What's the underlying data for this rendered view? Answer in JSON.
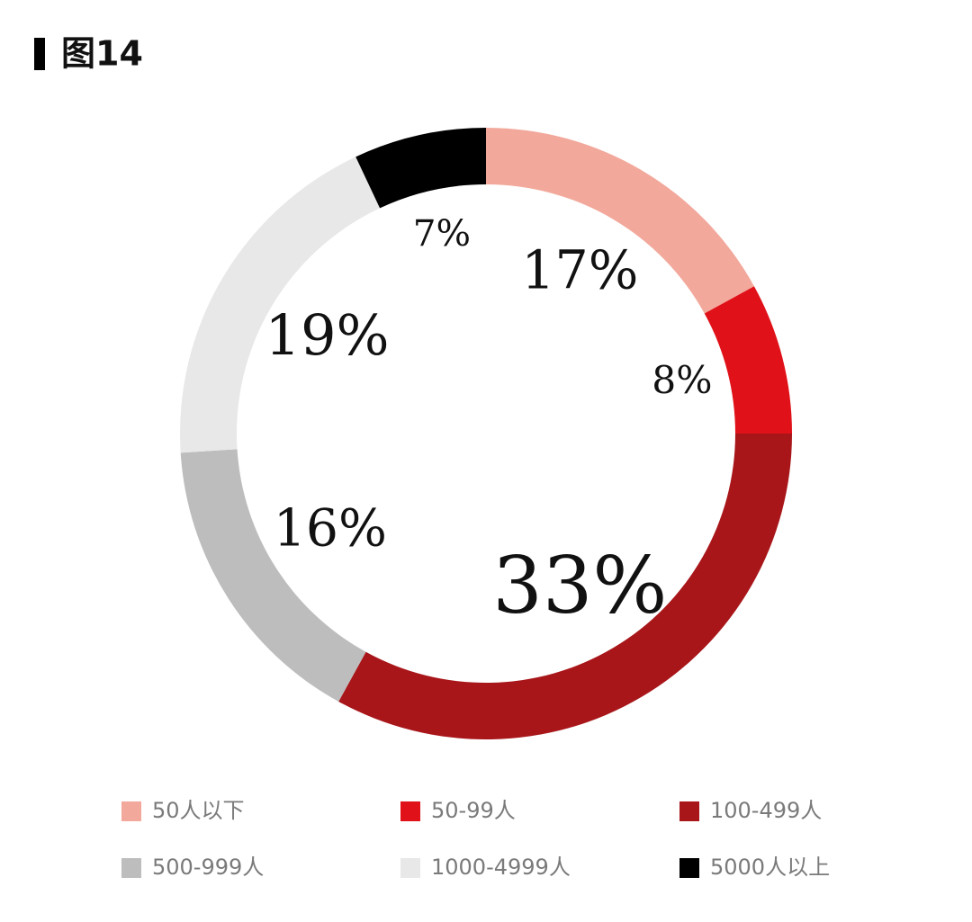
{
  "chart_data": {
    "type": "pie",
    "title": "图14",
    "categories": [
      "50人以下",
      "50-99人",
      "100-499人",
      "500-999人",
      "1000-4999人",
      "5000人以上"
    ],
    "values": [
      17,
      8,
      33,
      16,
      19,
      7
    ],
    "value_labels": [
      "17%",
      "8%",
      "33%",
      "16%",
      "19%",
      "7%"
    ],
    "colors": [
      "#f2a89b",
      "#e01119",
      "#a8161a",
      "#bdbdbd",
      "#e8e8e8",
      "#000000"
    ]
  }
}
